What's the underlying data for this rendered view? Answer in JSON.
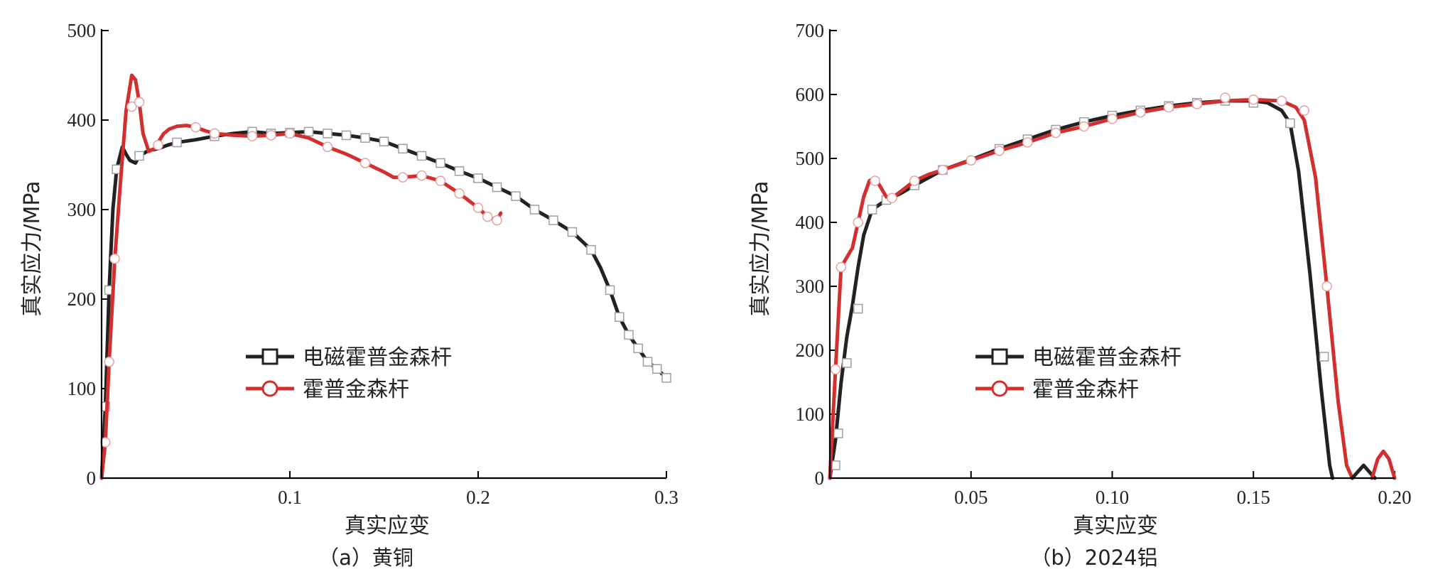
{
  "colors": {
    "black_series": "#222222",
    "red_series": "#d32f2f",
    "marker_fill": "#ffffff"
  },
  "chart_data": [
    {
      "type": "line",
      "caption": "（a）黄铜",
      "xlabel": "真实应变",
      "ylabel": "真实应力/MPa",
      "xlim": [
        0,
        0.3
      ],
      "ylim": [
        0,
        500
      ],
      "xticks": [
        0.1,
        0.2,
        0.3
      ],
      "xtick_labels": [
        "0.1",
        "0.2",
        "0.3"
      ],
      "yticks": [
        0,
        100,
        200,
        300,
        400,
        500
      ],
      "ytick_labels": [
        "0",
        "100",
        "200",
        "300",
        "400",
        "500"
      ],
      "grid": false,
      "legend_position": "center-left",
      "series": [
        {
          "name": "电磁霍普金森杆",
          "color": "#222222",
          "marker": "square",
          "x": [
            0,
            0.002,
            0.004,
            0.006,
            0.008,
            0.011,
            0.013,
            0.015,
            0.018,
            0.02,
            0.025,
            0.03,
            0.035,
            0.04,
            0.05,
            0.06,
            0.07,
            0.08,
            0.09,
            0.1,
            0.11,
            0.12,
            0.13,
            0.14,
            0.15,
            0.16,
            0.17,
            0.18,
            0.19,
            0.2,
            0.21,
            0.22,
            0.23,
            0.24,
            0.25,
            0.26,
            0.265,
            0.27,
            0.275,
            0.28,
            0.285,
            0.29,
            0.295,
            0.3
          ],
          "y": [
            0,
            80,
            210,
            300,
            345,
            370,
            362,
            355,
            352,
            360,
            366,
            368,
            372,
            375,
            378,
            382,
            385,
            387,
            385,
            386,
            387,
            385,
            383,
            380,
            376,
            368,
            360,
            352,
            343,
            335,
            325,
            315,
            300,
            288,
            275,
            255,
            235,
            210,
            180,
            160,
            145,
            130,
            122,
            112
          ],
          "markers_x": [
            0.002,
            0.004,
            0.008,
            0.02,
            0.04,
            0.06,
            0.08,
            0.09,
            0.1,
            0.11,
            0.12,
            0.13,
            0.14,
            0.15,
            0.16,
            0.17,
            0.18,
            0.19,
            0.2,
            0.21,
            0.22,
            0.23,
            0.24,
            0.25,
            0.26,
            0.27,
            0.275,
            0.28,
            0.285,
            0.29,
            0.295,
            0.3
          ],
          "markers_y": [
            80,
            210,
            345,
            360,
            375,
            382,
            387,
            385,
            386,
            387,
            385,
            383,
            380,
            376,
            368,
            360,
            352,
            343,
            335,
            325,
            315,
            300,
            288,
            275,
            255,
            210,
            180,
            160,
            145,
            130,
            122,
            112
          ]
        },
        {
          "name": "霍普金森杆",
          "color": "#d32f2f",
          "marker": "circle",
          "x": [
            0,
            0.002,
            0.004,
            0.007,
            0.01,
            0.013,
            0.016,
            0.018,
            0.02,
            0.022,
            0.025,
            0.028,
            0.03,
            0.033,
            0.036,
            0.04,
            0.045,
            0.05,
            0.055,
            0.06,
            0.07,
            0.08,
            0.09,
            0.1,
            0.11,
            0.12,
            0.13,
            0.14,
            0.15,
            0.155,
            0.16,
            0.17,
            0.18,
            0.19,
            0.2,
            0.205,
            0.21,
            0.212
          ],
          "y": [
            0,
            40,
            130,
            245,
            330,
            410,
            450,
            445,
            420,
            385,
            365,
            368,
            375,
            385,
            390,
            393,
            394,
            392,
            388,
            385,
            383,
            382,
            383,
            385,
            380,
            370,
            362,
            352,
            342,
            336,
            336,
            338,
            332,
            318,
            302,
            292,
            288,
            296
          ],
          "markers_x": [
            0.002,
            0.004,
            0.007,
            0.016,
            0.02,
            0.03,
            0.05,
            0.06,
            0.08,
            0.09,
            0.1,
            0.12,
            0.14,
            0.16,
            0.17,
            0.18,
            0.19,
            0.2,
            0.205,
            0.21
          ],
          "markers_y": [
            40,
            130,
            245,
            415,
            420,
            372,
            392,
            385,
            382,
            383,
            385,
            370,
            352,
            336,
            338,
            332,
            318,
            302,
            292,
            288
          ]
        }
      ]
    },
    {
      "type": "line",
      "caption": "（b）2024铝",
      "xlabel": "真实应变",
      "ylabel": "真实应力/MPa",
      "xlim": [
        0,
        0.2
      ],
      "ylim": [
        0,
        700
      ],
      "xticks": [
        0.05,
        0.1,
        0.15,
        0.2
      ],
      "xtick_labels": [
        "0.05",
        "0.10",
        "0.15",
        "0.20"
      ],
      "yticks": [
        0,
        100,
        200,
        300,
        400,
        500,
        600,
        700
      ],
      "ytick_labels": [
        "0",
        "100",
        "200",
        "300",
        "400",
        "500",
        "600",
        "700"
      ],
      "grid": false,
      "legend_position": "center-left",
      "series": [
        {
          "name": "电磁霍普金森杆",
          "color": "#222222",
          "marker": "square",
          "x": [
            0,
            0.002,
            0.004,
            0.006,
            0.008,
            0.01,
            0.012,
            0.015,
            0.02,
            0.025,
            0.03,
            0.035,
            0.04,
            0.05,
            0.06,
            0.07,
            0.08,
            0.09,
            0.1,
            0.11,
            0.12,
            0.13,
            0.14,
            0.15,
            0.155,
            0.16,
            0.163,
            0.166,
            0.17,
            0.174,
            0.177,
            0.178
          ],
          "y": [
            0,
            60,
            150,
            220,
            270,
            330,
            380,
            420,
            435,
            445,
            458,
            470,
            482,
            498,
            515,
            530,
            545,
            557,
            567,
            575,
            582,
            587,
            590,
            590,
            587,
            575,
            555,
            480,
            320,
            140,
            20,
            0
          ],
          "markers_x": [
            0.002,
            0.003,
            0.006,
            0.01,
            0.015,
            0.02,
            0.03,
            0.04,
            0.06,
            0.07,
            0.08,
            0.09,
            0.1,
            0.11,
            0.12,
            0.13,
            0.14,
            0.15,
            0.163,
            0.175
          ],
          "markers_y": [
            20,
            70,
            180,
            265,
            420,
            435,
            458,
            482,
            515,
            530,
            545,
            557,
            567,
            575,
            582,
            587,
            590,
            587,
            555,
            190
          ]
        },
        {
          "name": "霍普金森杆",
          "color": "#d32f2f",
          "marker": "circle",
          "x": [
            0,
            0.002,
            0.004,
            0.006,
            0.008,
            0.01,
            0.012,
            0.014,
            0.016,
            0.018,
            0.02,
            0.022,
            0.025,
            0.03,
            0.035,
            0.04,
            0.05,
            0.06,
            0.07,
            0.08,
            0.09,
            0.1,
            0.11,
            0.12,
            0.13,
            0.14,
            0.15,
            0.16,
            0.165,
            0.168,
            0.172,
            0.176,
            0.18,
            0.183,
            0.185
          ],
          "y": [
            0,
            170,
            330,
            345,
            360,
            400,
            440,
            465,
            470,
            455,
            440,
            438,
            448,
            465,
            475,
            482,
            497,
            512,
            525,
            540,
            550,
            562,
            572,
            580,
            585,
            590,
            592,
            590,
            580,
            560,
            470,
            300,
            120,
            20,
            0
          ],
          "markers_x": [
            0.002,
            0.004,
            0.01,
            0.016,
            0.022,
            0.03,
            0.04,
            0.05,
            0.06,
            0.07,
            0.08,
            0.09,
            0.1,
            0.11,
            0.12,
            0.13,
            0.14,
            0.15,
            0.16,
            0.168,
            0.176
          ],
          "markers_y": [
            170,
            330,
            400,
            465,
            438,
            465,
            482,
            497,
            512,
            525,
            540,
            550,
            562,
            572,
            580,
            585,
            595,
            592,
            590,
            575,
            300
          ]
        },
        {
          "name": "",
          "color": "#222222",
          "marker": "none",
          "x": [
            0.185,
            0.187,
            0.189,
            0.191,
            0.193
          ],
          "y": [
            0,
            10,
            20,
            10,
            0
          ],
          "markers_x": [],
          "markers_y": []
        },
        {
          "name": "",
          "color": "#d32f2f",
          "marker": "none",
          "x": [
            0.192,
            0.194,
            0.196,
            0.198,
            0.2
          ],
          "y": [
            0,
            30,
            42,
            30,
            0
          ],
          "markers_x": [],
          "markers_y": []
        }
      ]
    }
  ]
}
